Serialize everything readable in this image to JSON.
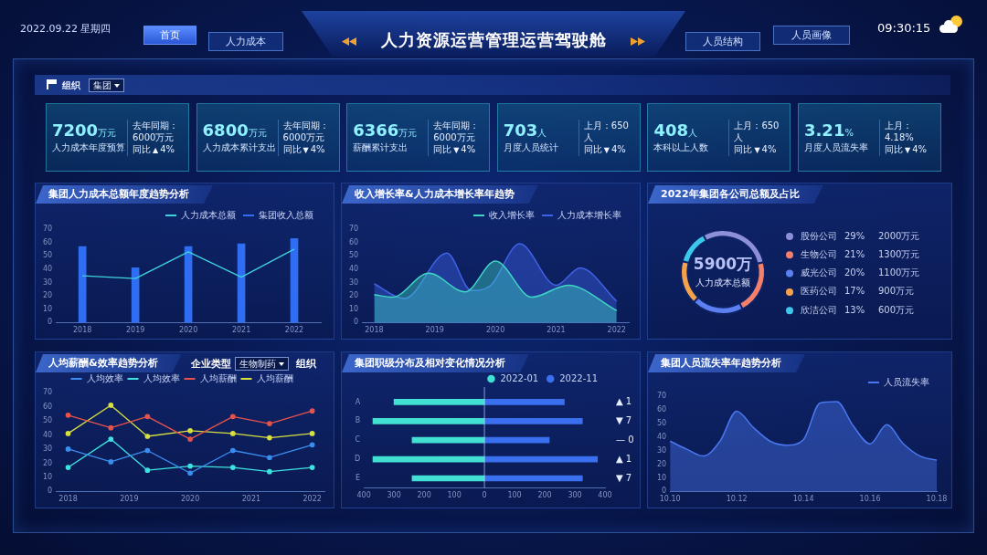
{
  "chart_data": [
    {
      "type": "other",
      "title": "人力资源运营管理运营驾驶舱",
      "annotations": [
        "2022.09.22 星期四",
        "首页",
        "人力成本",
        "人员结构",
        "人员画像",
        "09:30:15",
        "组织",
        "集团"
      ]
    },
    {
      "type": "other",
      "annotations": [
        "7200",
        "万元",
        "人力成本年度预算",
        "去年同期：6000万元",
        "同比",
        "▲",
        "4%",
        "6800",
        "万元",
        "人力成本累计支出",
        "去年同期：6000万元",
        "同比",
        "▼",
        "4%",
        "6366",
        "万元",
        "薪酬累计支出",
        "去年同期：6000万元",
        "同比",
        "▼",
        "4%",
        "703",
        "人",
        "月度人员统计",
        "上月：650人",
        "同比",
        "▼",
        "4%",
        "408",
        "人",
        "本科以上人数",
        "上月：650人",
        "同比",
        "▼",
        "4%",
        "3.21",
        "%",
        "月度人员流失率",
        "上月：4.18%",
        "同比",
        "▼",
        "4%"
      ]
    },
    {
      "type": "bar",
      "title": "集团人力成本总额年度趋势分析",
      "categories": [
        "2018",
        "2019",
        "2020",
        "2021",
        "2022"
      ],
      "series": [
        {
          "name": "人力成本总额",
          "type": "line",
          "color": "#3fd3dc",
          "values": [
            35,
            33,
            53,
            34,
            55
          ]
        },
        {
          "name": "集团收入总额",
          "type": "bar",
          "color": "#2f6df2",
          "values": [
            57,
            41,
            57,
            59,
            63
          ]
        }
      ],
      "ylim": [
        0,
        70
      ],
      "yticks": [
        0,
        10,
        20,
        30,
        40,
        50,
        60,
        70
      ],
      "legend": "top right"
    },
    {
      "type": "area",
      "title": "收入增长率&人力成本增长率年趋势",
      "series": [
        {
          "name": "收入增长率",
          "color": "#3fd6c6",
          "x": [
            2018,
            2018.3,
            2018.9,
            2019.5,
            2020,
            2020.6,
            2021.2,
            2022
          ],
          "values": [
            21,
            19,
            37,
            23,
            46,
            19,
            28,
            9
          ]
        },
        {
          "name": "人力成本增长率",
          "color": "#3f62e6",
          "x": [
            2018,
            2018.5,
            2019.2,
            2019.6,
            2019.9,
            2020.4,
            2021,
            2021.4,
            2022
          ],
          "values": [
            29,
            18,
            52,
            24,
            27,
            59,
            28,
            41,
            16
          ]
        }
      ],
      "xlim": [
        2017.8,
        2022.2
      ],
      "xticks": [
        2018,
        2019,
        2020,
        2021,
        2022
      ],
      "ylim": [
        0,
        70
      ],
      "yticks": [
        0,
        10,
        20,
        30,
        40,
        50,
        60,
        70
      ],
      "legend": "top right"
    },
    {
      "type": "donut",
      "title": "2022年集团各公司总额及占比",
      "categories": [
        "股份公司",
        "生物公司",
        "威光公司",
        "医药公司",
        "欣洁公司"
      ],
      "values": [
        29,
        21,
        20,
        17,
        13
      ],
      "colors": [
        "#8d8fd8",
        "#f2806c",
        "#5c80f2",
        "#f5a34b",
        "#3dc7ea"
      ],
      "value_labels": [
        "29%",
        "21%",
        "20%",
        "17%",
        "13%"
      ],
      "annotations": [
        "5900万",
        "人力成本总额",
        "2000万元",
        "1300万元",
        "1100万元",
        "900万元",
        "600万元"
      ],
      "legend": "right"
    },
    {
      "type": "line",
      "title": "人均薪酬&效率趋势分析",
      "annotations": [
        "企业类型",
        "生物制药",
        "组织"
      ],
      "x": [
        2018,
        2018.7,
        2019.3,
        2020,
        2020.7,
        2021.3,
        2022
      ],
      "series": [
        {
          "name": "人均效率",
          "color": "#3a8ef0",
          "values": [
            30,
            21,
            29,
            13,
            29,
            24,
            33
          ]
        },
        {
          "name": "人均效率",
          "color": "#3ee3e0",
          "values": [
            17,
            37,
            15,
            18,
            17,
            14,
            17
          ]
        },
        {
          "name": "人均薪酬",
          "color": "#e5534b",
          "values": [
            54,
            45,
            53,
            37,
            53,
            48,
            57
          ]
        },
        {
          "name": "人均薪酬",
          "color": "#d9e03f",
          "values": [
            41,
            61,
            39,
            43,
            41,
            38,
            41
          ]
        }
      ],
      "xlim": [
        2017.8,
        2022.2
      ],
      "xticks": [
        2018,
        2019,
        2020,
        2021,
        2022
      ],
      "ylim": [
        0,
        70
      ],
      "yticks": [
        0,
        10,
        20,
        30,
        40,
        50,
        60,
        70
      ],
      "legend": "top",
      "marker": "circle"
    },
    {
      "type": "bar",
      "title": "集团职级分布及相对变化情况分析",
      "orientation": "horizontal",
      "stacked": true,
      "categories": [
        "A",
        "B",
        "C",
        "D",
        "E"
      ],
      "series": [
        {
          "name": "2022-01",
          "color": "#41e0d2",
          "values": [
            -300,
            -370,
            -240,
            -370,
            -240
          ]
        },
        {
          "name": "2022-11",
          "color": "#3a6ff0",
          "values": [
            265,
            325,
            215,
            375,
            325
          ]
        }
      ],
      "xlim": [
        -400,
        400
      ],
      "xticks": [
        {
          "value": -400,
          "label": "400"
        },
        {
          "value": -300,
          "label": "300"
        },
        {
          "value": -200,
          "label": "200"
        },
        {
          "value": -100,
          "label": "100"
        },
        0,
        100,
        200,
        300,
        400
      ],
      "ref_lines": [
        {
          "axis": "x",
          "value": 0
        }
      ],
      "annotations": [
        "▲ 1",
        "▼ 7",
        "— 0",
        "▲ 1",
        "▼ 7"
      ],
      "legend": "top right"
    },
    {
      "type": "area",
      "title": "集团人员流失率年趋势分析",
      "categories": [
        "10.10",
        null,
        null,
        null,
        "10.12",
        null,
        null,
        null,
        "10.14",
        null,
        null,
        null,
        "10.16",
        null,
        null,
        null,
        "10.18"
      ],
      "series": [
        {
          "name": "人员流失率",
          "color": "#4a78f0",
          "values": [
            37,
            31,
            26,
            37,
            59,
            47,
            37,
            34,
            38,
            65,
            66,
            48,
            35,
            49,
            35,
            26,
            23
          ]
        }
      ],
      "ylim": [
        0,
        70
      ],
      "yticks": [
        0,
        10,
        20,
        30,
        40,
        50,
        60,
        70
      ],
      "legend": "top right"
    }
  ]
}
